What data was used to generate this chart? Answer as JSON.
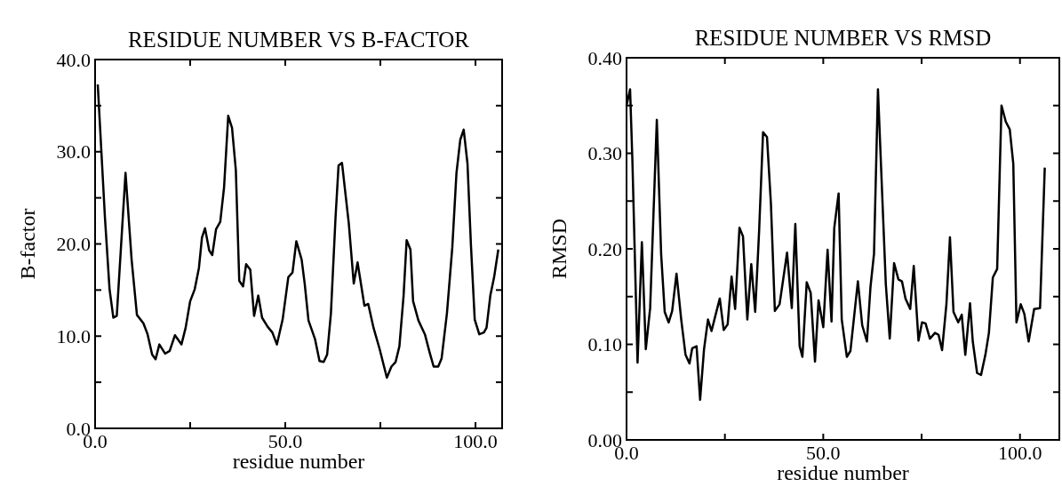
{
  "chart_data": [
    {
      "type": "line",
      "title": "RESIDUE NUMBER VS B-FACTOR",
      "xlabel": "residue number",
      "ylabel": "B-factor",
      "xlim": [
        0,
        107
      ],
      "ylim": [
        0,
        40
      ],
      "xticks": [
        {
          "value": 0,
          "label": "0.0"
        },
        {
          "value": 25,
          "label": null
        },
        {
          "value": 50,
          "label": "50.0"
        },
        {
          "value": 75,
          "label": null
        },
        {
          "value": 100,
          "label": "100.0"
        }
      ],
      "yticks": [
        {
          "value": 0,
          "label": "0.0"
        },
        {
          "value": 5,
          "label": null
        },
        {
          "value": 10,
          "label": "10.0"
        },
        {
          "value": 15,
          "label": null
        },
        {
          "value": 20,
          "label": "20.0"
        },
        {
          "value": 25,
          "label": null
        },
        {
          "value": 30,
          "label": "30.0"
        },
        {
          "value": 35,
          "label": null
        },
        {
          "value": 40,
          "label": "40.0"
        }
      ],
      "series": [
        {
          "color": "#000000",
          "x": [
            0.7,
            2.6,
            3.8,
            4.8,
            5.7,
            8.0,
            9.6,
            11.0,
            12.7,
            13.8,
            15.0,
            15.9,
            16.9,
            18.4,
            19.6,
            21.0,
            22.7,
            23.8,
            25.0,
            26.2,
            27.3,
            28.1,
            28.9,
            30.0,
            30.8,
            31.8,
            32.9,
            33.9,
            35.0,
            36.0,
            37.0,
            37.9,
            38.9,
            39.7,
            40.8,
            41.8,
            42.9,
            43.9,
            45.4,
            46.6,
            47.8,
            49.3,
            50.8,
            51.9,
            52.9,
            54.3,
            55.1,
            56.1,
            57.8,
            59.0,
            60.1,
            61.0,
            62.0,
            63.2,
            64.0,
            64.9,
            66.7,
            68.0,
            69.0,
            70.8,
            71.8,
            73.2,
            74.8,
            76.7,
            77.9,
            79.0,
            80.0,
            81.1,
            81.9,
            82.9,
            83.6,
            85.0,
            86.7,
            87.9,
            89.0,
            90.2,
            91.1,
            92.5,
            93.9,
            95.0,
            96.0,
            96.9,
            97.9,
            98.8,
            99.8,
            101.0,
            102.2,
            102.9,
            103.9,
            104.9,
            106.0
          ],
          "values": [
            37.3,
            22.8,
            15.1,
            12.0,
            12.2,
            27.7,
            18.3,
            12.3,
            11.4,
            10.2,
            8.0,
            7.5,
            9.1,
            8.1,
            8.4,
            10.1,
            9.1,
            10.9,
            13.8,
            15.1,
            17.4,
            20.7,
            21.7,
            19.3,
            18.8,
            21.6,
            22.4,
            26.1,
            33.9,
            32.6,
            28.0,
            16.0,
            15.4,
            17.8,
            17.2,
            12.2,
            14.4,
            12.0,
            11.0,
            10.4,
            9.1,
            11.8,
            16.4,
            16.9,
            20.3,
            18.3,
            15.7,
            11.7,
            9.7,
            7.3,
            7.2,
            8.0,
            12.5,
            22.8,
            28.5,
            28.8,
            22.2,
            15.7,
            18.0,
            13.3,
            13.5,
            10.9,
            8.6,
            5.5,
            6.7,
            7.2,
            8.9,
            14.4,
            20.4,
            19.4,
            13.8,
            11.7,
            10.2,
            8.3,
            6.7,
            6.7,
            7.6,
            12.5,
            19.6,
            27.7,
            31.3,
            32.4,
            28.7,
            19.9,
            11.8,
            10.2,
            10.4,
            10.9,
            14.4,
            16.4,
            19.4
          ]
        }
      ]
    },
    {
      "type": "line",
      "title": "RESIDUE NUMBER VS RMSD",
      "xlabel": "residue number",
      "ylabel": "RMSD",
      "xlim": [
        0,
        110
      ],
      "ylim": [
        0,
        0.4
      ],
      "xticks": [
        {
          "value": 0,
          "label": "0.0"
        },
        {
          "value": 25,
          "label": null
        },
        {
          "value": 50,
          "label": "50.0"
        },
        {
          "value": 75,
          "label": null
        },
        {
          "value": 100,
          "label": "100.0"
        }
      ],
      "yticks": [
        {
          "value": 0,
          "label": "0.00"
        },
        {
          "value": 0.05,
          "label": null
        },
        {
          "value": 0.1,
          "label": "0.10"
        },
        {
          "value": 0.15,
          "label": null
        },
        {
          "value": 0.2,
          "label": "0.20"
        },
        {
          "value": 0.25,
          "label": null
        },
        {
          "value": 0.3,
          "label": "0.30"
        },
        {
          "value": 0.35,
          "label": null
        },
        {
          "value": 0.4,
          "label": "0.40"
        }
      ],
      "series": [
        {
          "color": "#000000",
          "x": [
            0,
            0.9,
            1.5,
            2.8,
            3.9,
            4.9,
            6.0,
            7.7,
            8.8,
            9.7,
            10.7,
            11.6,
            12.7,
            13.9,
            15.0,
            16.0,
            16.7,
            17.8,
            18.7,
            19.7,
            20.7,
            21.6,
            22.7,
            23.7,
            24.7,
            25.7,
            26.7,
            27.6,
            28.7,
            29.6,
            30.7,
            31.7,
            32.7,
            33.7,
            34.7,
            35.7,
            36.7,
            37.7,
            38.9,
            40.8,
            42.0,
            42.9,
            44.0,
            44.7,
            45.8,
            46.8,
            47.9,
            48.8,
            50.0,
            51.1,
            52.1,
            52.8,
            53.9,
            54.7,
            56.0,
            56.9,
            58.8,
            59.9,
            61.1,
            62.0,
            62.9,
            63.9,
            64.8,
            65.9,
            66.9,
            68.0,
            69.1,
            70.0,
            70.9,
            72.1,
            73.0,
            74.2,
            75.1,
            76.0,
            77.1,
            78.4,
            79.3,
            80.2,
            81.3,
            82.2,
            83.1,
            84.3,
            85.2,
            86.1,
            87.3,
            88.0,
            89.1,
            90.1,
            91.2,
            92.1,
            93.1,
            94.2,
            95.3,
            96.4,
            97.4,
            98.3,
            99.1,
            100.2,
            101.1,
            102.2,
            103.6,
            105.1,
            106.3
          ],
          "values": [
            0.35,
            0.367,
            0.291,
            0.081,
            0.207,
            0.095,
            0.138,
            0.335,
            0.194,
            0.134,
            0.123,
            0.135,
            0.174,
            0.126,
            0.089,
            0.08,
            0.096,
            0.098,
            0.042,
            0.095,
            0.126,
            0.114,
            0.132,
            0.148,
            0.115,
            0.121,
            0.171,
            0.137,
            0.222,
            0.213,
            0.126,
            0.184,
            0.134,
            0.219,
            0.322,
            0.317,
            0.247,
            0.135,
            0.142,
            0.196,
            0.138,
            0.226,
            0.098,
            0.087,
            0.165,
            0.154,
            0.082,
            0.146,
            0.118,
            0.199,
            0.124,
            0.222,
            0.258,
            0.126,
            0.087,
            0.093,
            0.166,
            0.12,
            0.103,
            0.16,
            0.195,
            0.367,
            0.275,
            0.163,
            0.106,
            0.185,
            0.168,
            0.166,
            0.148,
            0.137,
            0.182,
            0.104,
            0.123,
            0.122,
            0.106,
            0.112,
            0.11,
            0.094,
            0.142,
            0.212,
            0.134,
            0.123,
            0.131,
            0.089,
            0.143,
            0.103,
            0.07,
            0.068,
            0.089,
            0.112,
            0.17,
            0.179,
            0.35,
            0.333,
            0.325,
            0.289,
            0.123,
            0.142,
            0.132,
            0.103,
            0.137,
            0.138,
            0.285
          ]
        }
      ]
    }
  ]
}
